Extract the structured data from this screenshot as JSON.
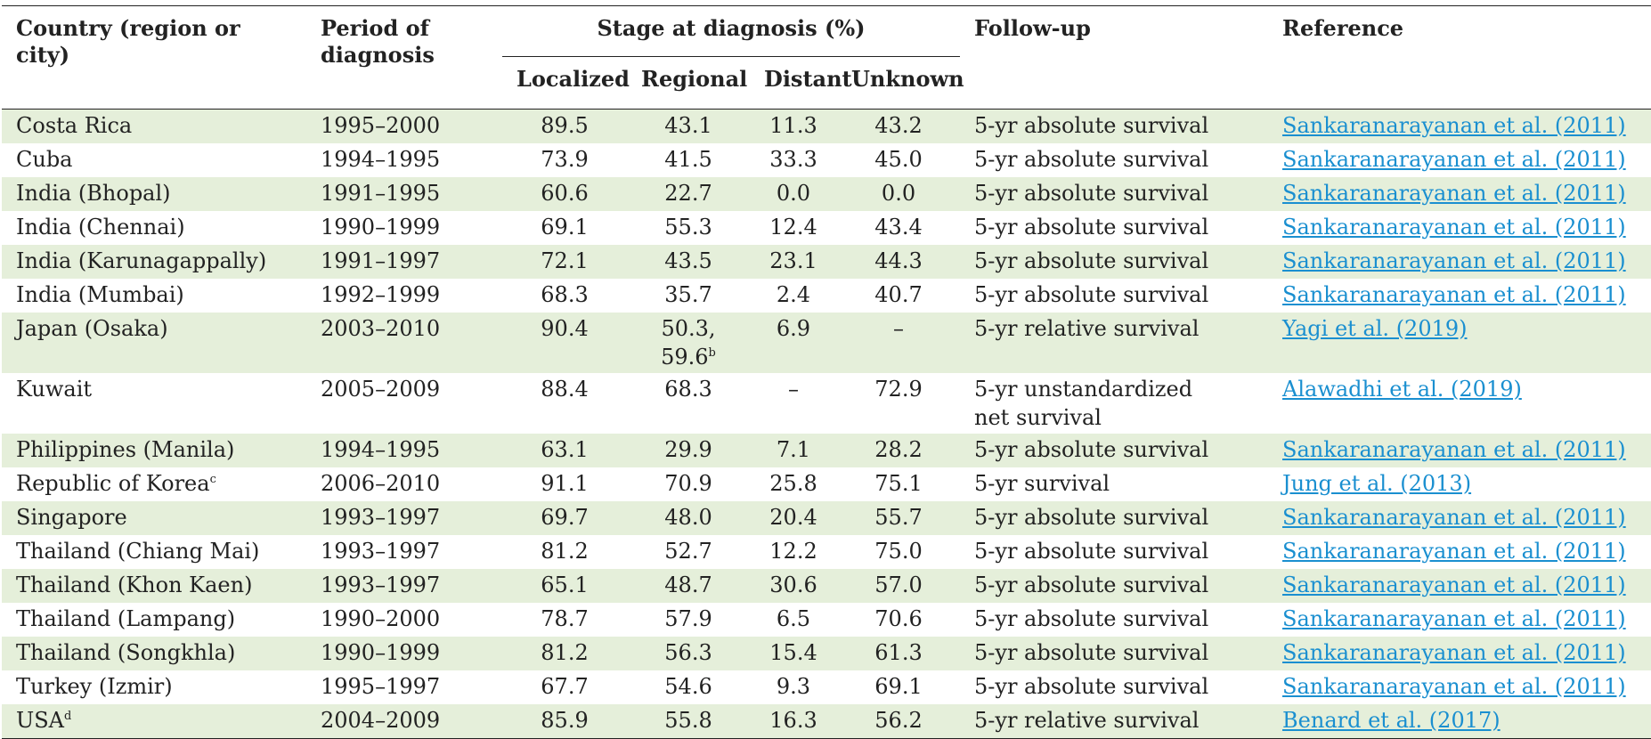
{
  "header": {
    "country": "Country (region or city)",
    "period_line1": "Period of",
    "period_line2": "diagnosis",
    "stage": "Stage at diagnosis (%)",
    "localized": "Localized",
    "regional": "Regional",
    "distant": "Distant",
    "unknown": "Unknown",
    "followup": "Follow-up",
    "reference": "Reference"
  },
  "rows": [
    {
      "country": "Costa Rica",
      "sup": "",
      "period": "1995–2000",
      "localized": "89.5",
      "regional": "43.1",
      "regional2": "",
      "regional2_sup": "",
      "distant": "11.3",
      "unknown": "43.2",
      "followup": "5-yr absolute survival",
      "followup2": "",
      "reference": "Sankaranarayanan et al. (2011)"
    },
    {
      "country": "Cuba",
      "sup": "",
      "period": "1994–1995",
      "localized": "73.9",
      "regional": "41.5",
      "regional2": "",
      "regional2_sup": "",
      "distant": "33.3",
      "unknown": "45.0",
      "followup": "5-yr absolute survival",
      "followup2": "",
      "reference": "Sankaranarayanan et al. (2011)"
    },
    {
      "country": "India (Bhopal)",
      "sup": "",
      "period": "1991–1995",
      "localized": "60.6",
      "regional": "22.7",
      "regional2": "",
      "regional2_sup": "",
      "distant": "0.0",
      "unknown": "0.0",
      "followup": "5-yr absolute survival",
      "followup2": "",
      "reference": "Sankaranarayanan et al. (2011)"
    },
    {
      "country": "India (Chennai)",
      "sup": "",
      "period": "1990–1999",
      "localized": "69.1",
      "regional": "55.3",
      "regional2": "",
      "regional2_sup": "",
      "distant": "12.4",
      "unknown": "43.4",
      "followup": "5-yr absolute survival",
      "followup2": "",
      "reference": "Sankaranarayanan et al. (2011)"
    },
    {
      "country": "India (Karunagappally)",
      "sup": "",
      "period": "1991–1997",
      "localized": "72.1",
      "regional": "43.5",
      "regional2": "",
      "regional2_sup": "",
      "distant": "23.1",
      "unknown": "44.3",
      "followup": "5-yr absolute survival",
      "followup2": "",
      "reference": "Sankaranarayanan et al. (2011)"
    },
    {
      "country": "India (Mumbai)",
      "sup": "",
      "period": "1992–1999",
      "localized": "68.3",
      "regional": "35.7",
      "regional2": "",
      "regional2_sup": "",
      "distant": "2.4",
      "unknown": "40.7",
      "followup": "5-yr absolute survival",
      "followup2": "",
      "reference": "Sankaranarayanan et al. (2011)"
    },
    {
      "country": "Japan (Osaka)",
      "sup": "",
      "period": "2003–2010",
      "localized": "90.4",
      "regional": "50.3,",
      "regional2": "59.6",
      "regional2_sup": "b",
      "distant": "6.9",
      "unknown": "–",
      "followup": "5-yr relative survival",
      "followup2": "",
      "reference": "Yagi et al. (2019)"
    },
    {
      "country": "Kuwait",
      "sup": "",
      "period": "2005–2009",
      "localized": "88.4",
      "regional": "68.3",
      "regional2": "",
      "regional2_sup": "",
      "distant": "–",
      "unknown": "72.9",
      "followup": "5-yr unstandardized",
      "followup2": "net survival",
      "reference": "Alawadhi et al. (2019)"
    },
    {
      "country": "Philippines (Manila)",
      "sup": "",
      "period": "1994–1995",
      "localized": "63.1",
      "regional": "29.9",
      "regional2": "",
      "regional2_sup": "",
      "distant": "7.1",
      "unknown": "28.2",
      "followup": "5-yr absolute survival",
      "followup2": "",
      "reference": "Sankaranarayanan et al. (2011)"
    },
    {
      "country": "Republic of Korea",
      "sup": "c",
      "period": "2006–2010",
      "localized": "91.1",
      "regional": "70.9",
      "regional2": "",
      "regional2_sup": "",
      "distant": "25.8",
      "unknown": "75.1",
      "followup": "5-yr survival",
      "followup2": "",
      "reference": "Jung et al. (2013)"
    },
    {
      "country": "Singapore",
      "sup": "",
      "period": "1993–1997",
      "localized": "69.7",
      "regional": "48.0",
      "regional2": "",
      "regional2_sup": "",
      "distant": "20.4",
      "unknown": "55.7",
      "followup": "5-yr absolute survival",
      "followup2": "",
      "reference": "Sankaranarayanan et al. (2011)"
    },
    {
      "country": "Thailand (Chiang Mai)",
      "sup": "",
      "period": "1993–1997",
      "localized": "81.2",
      "regional": "52.7",
      "regional2": "",
      "regional2_sup": "",
      "distant": "12.2",
      "unknown": "75.0",
      "followup": "5-yr absolute survival",
      "followup2": "",
      "reference": "Sankaranarayanan et al. (2011)"
    },
    {
      "country": "Thailand (Khon Kaen)",
      "sup": "",
      "period": "1993–1997",
      "localized": "65.1",
      "regional": "48.7",
      "regional2": "",
      "regional2_sup": "",
      "distant": "30.6",
      "unknown": "57.0",
      "followup": "5-yr absolute survival",
      "followup2": "",
      "reference": "Sankaranarayanan et al. (2011)"
    },
    {
      "country": "Thailand (Lampang)",
      "sup": "",
      "period": "1990–2000",
      "localized": "78.7",
      "regional": "57.9",
      "regional2": "",
      "regional2_sup": "",
      "distant": "6.5",
      "unknown": "70.6",
      "followup": "5-yr absolute survival",
      "followup2": "",
      "reference": "Sankaranarayanan et al. (2011)"
    },
    {
      "country": "Thailand (Songkhla)",
      "sup": "",
      "period": "1990–1999",
      "localized": "81.2",
      "regional": "56.3",
      "regional2": "",
      "regional2_sup": "",
      "distant": "15.4",
      "unknown": "61.3",
      "followup": "5-yr absolute survival",
      "followup2": "",
      "reference": "Sankaranarayanan et al. (2011)"
    },
    {
      "country": "Turkey (Izmir)",
      "sup": "",
      "period": "1995–1997",
      "localized": "67.7",
      "regional": "54.6",
      "regional2": "",
      "regional2_sup": "",
      "distant": "9.3",
      "unknown": "69.1",
      "followup": "5-yr absolute survival",
      "followup2": "",
      "reference": "Sankaranarayanan et al. (2011)"
    },
    {
      "country": "USA",
      "sup": "d",
      "period": "2004–2009",
      "localized": "85.9",
      "regional": "55.8",
      "regional2": "",
      "regional2_sup": "",
      "distant": "16.3",
      "unknown": "56.2",
      "followup": "5-yr relative survival",
      "followup2": "",
      "reference": "Benard et al. (2017)"
    }
  ],
  "colors": {
    "stripe": "#e5efda",
    "link": "#1a8fd0",
    "rule": "#222222"
  }
}
